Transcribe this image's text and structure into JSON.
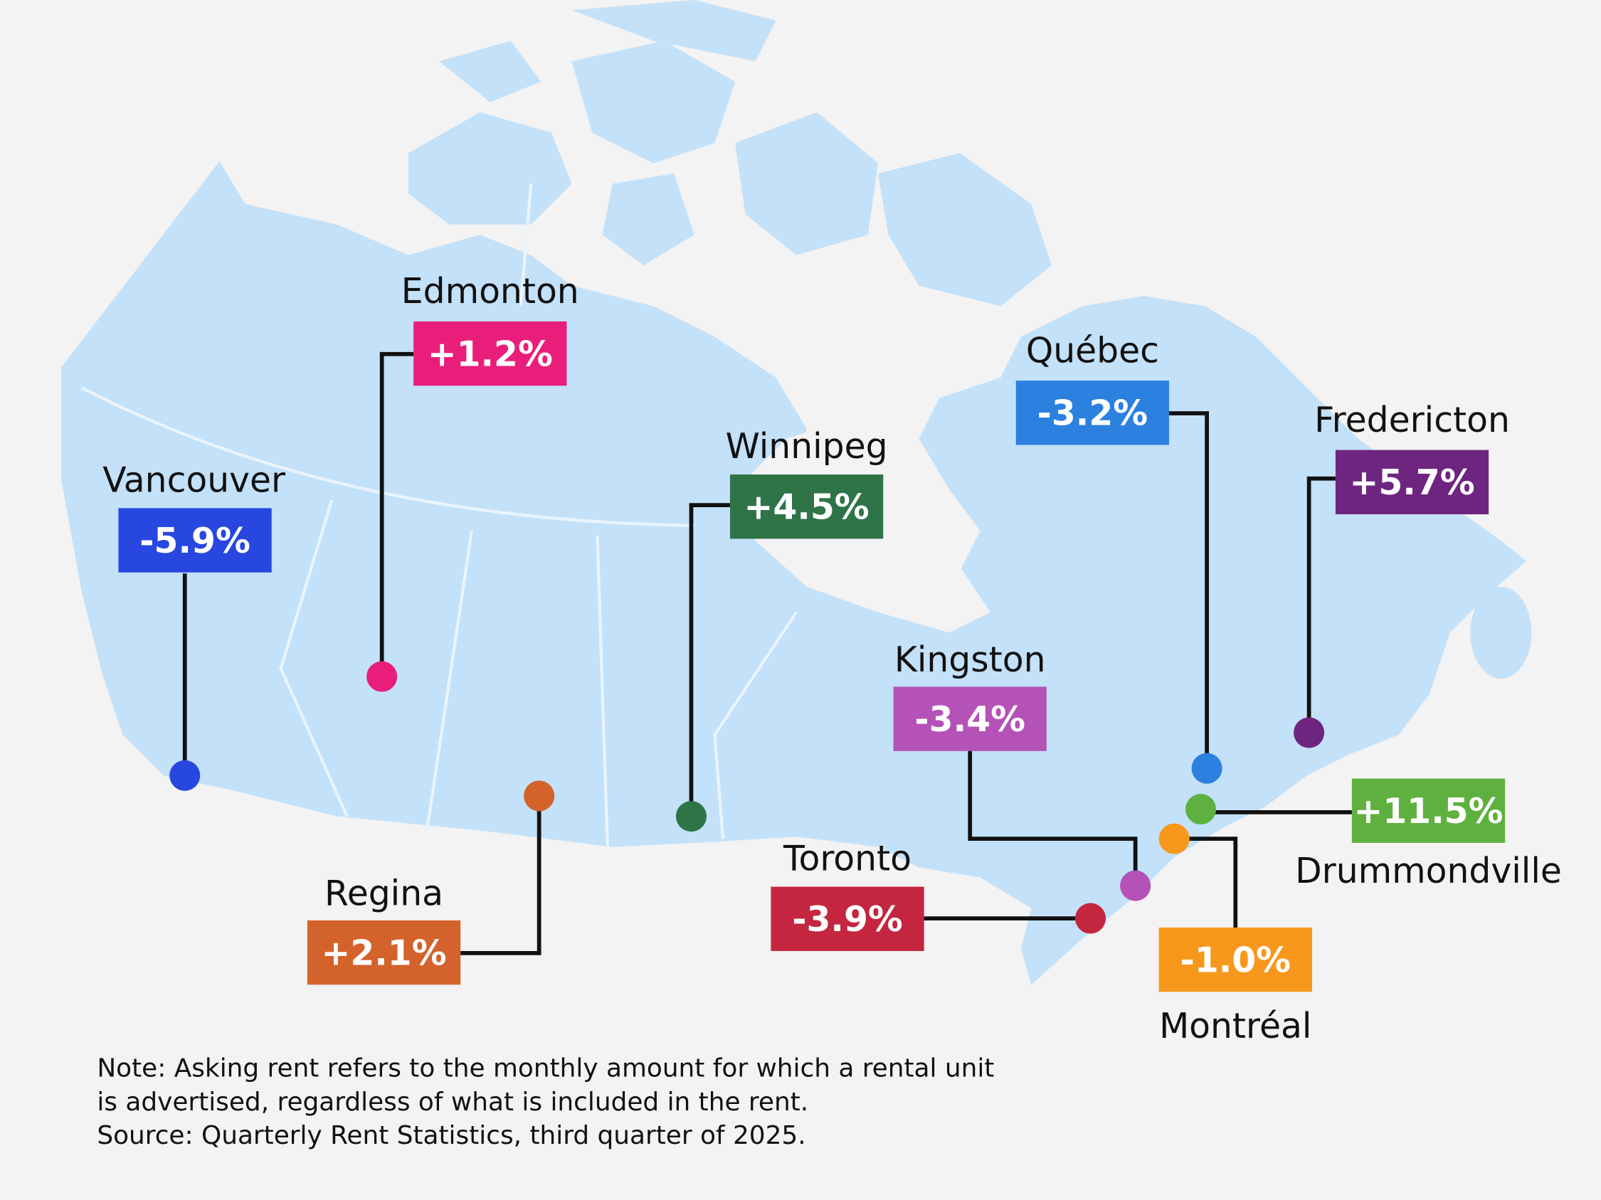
{
  "cities": [
    {
      "name": "Vancouver",
      "change": "-5.9%",
      "color": "#2847e0"
    },
    {
      "name": "Edmonton",
      "change": "+1.2%",
      "color": "#e91e7a"
    },
    {
      "name": "Regina",
      "change": "+2.1%",
      "color": "#d4622b"
    },
    {
      "name": "Winnipeg",
      "change": "+4.5%",
      "color": "#2e7447"
    },
    {
      "name": "Kingston",
      "change": "-3.4%",
      "color": "#b552b8"
    },
    {
      "name": "Toronto",
      "change": "-3.9%",
      "color": "#c4253f"
    },
    {
      "name": "Québec",
      "change": "-3.2%",
      "color": "#2b80e0"
    },
    {
      "name": "Fredericton",
      "change": "+5.7%",
      "color": "#6e2580"
    },
    {
      "name": "Drummondville",
      "change": "+11.5%",
      "color": "#5fb13f"
    },
    {
      "name": "Montréal",
      "change": "-1.0%",
      "color": "#f7981c"
    }
  ],
  "note": [
    "Note: Asking rent refers to the monthly amount for which a rental unit",
    "is advertised, regardless of what is included in the rent.",
    "Source: Quarterly Rent Statistics, third quarter of 2025."
  ]
}
